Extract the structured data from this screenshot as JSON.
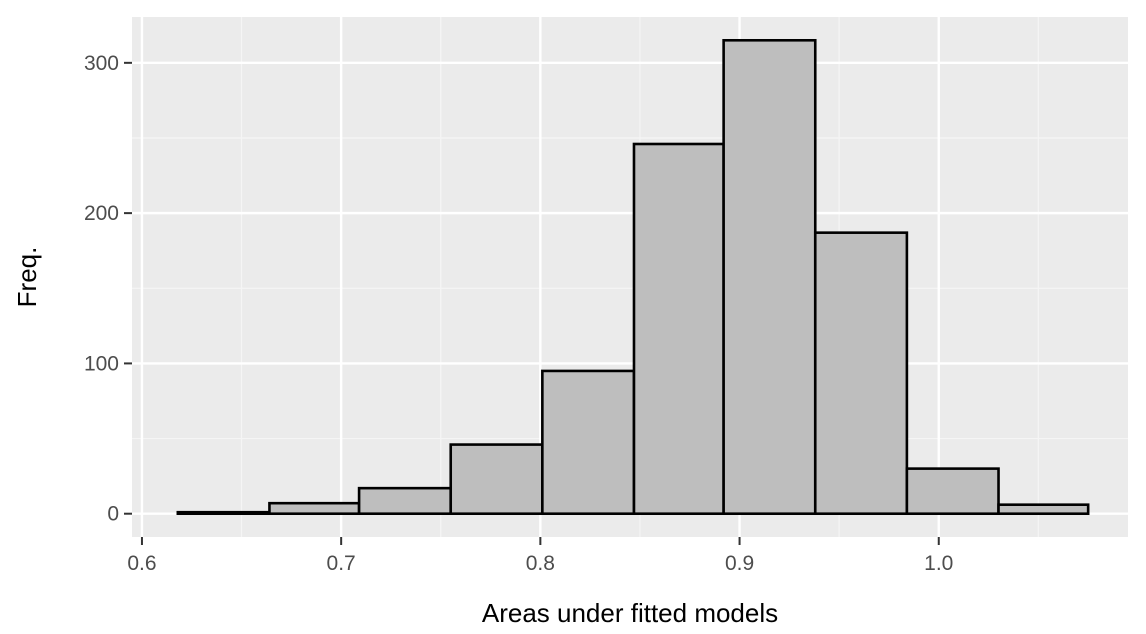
{
  "colors": {
    "panel_background": "#EBEBEB",
    "grid_major": "#FFFFFF",
    "grid_minor": "#F5F5F5",
    "bar_fill": "#BEBEBE",
    "bar_outline": "#000000",
    "tick_text": "#4D4D4D",
    "tick_mark": "#333333"
  },
  "chart_data": {
    "type": "bar",
    "title": "",
    "xlabel": "Areas under fitted models",
    "ylabel": "Freq.",
    "xlim": [
      0.595,
      1.095
    ],
    "ylim": [
      -15.5,
      330.5
    ],
    "x_ticks": [
      {
        "value": 0.6,
        "label": "0.6"
      },
      {
        "value": 0.7,
        "label": "0.7"
      },
      {
        "value": 0.8,
        "label": "0.8"
      },
      {
        "value": 0.9,
        "label": "0.9"
      },
      {
        "value": 1.0,
        "label": "1.0"
      }
    ],
    "y_ticks": [
      {
        "value": 0,
        "label": "0"
      },
      {
        "value": 100,
        "label": "100"
      },
      {
        "value": 200,
        "label": "200"
      },
      {
        "value": 300,
        "label": "300"
      }
    ],
    "bin_edges": [
      0.618,
      0.664,
      0.709,
      0.755,
      0.801,
      0.847,
      0.892,
      0.938,
      0.984,
      1.03,
      1.075
    ],
    "values": [
      1,
      7,
      17,
      46,
      95,
      246,
      315,
      187,
      30,
      6
    ],
    "grid": true,
    "legend": false
  }
}
